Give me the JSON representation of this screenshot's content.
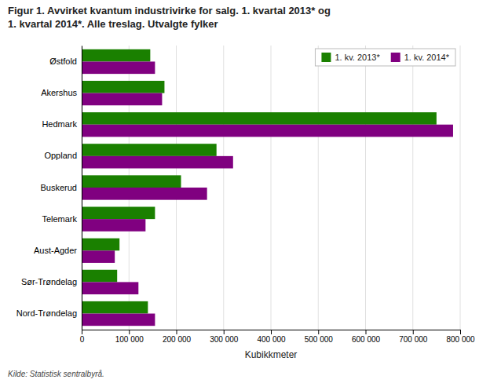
{
  "chart_data": {
    "type": "bar",
    "orientation": "horizontal",
    "title": "Figur 1. Avvirket kvantum industrivirke for salg. 1. kvartal 2013* og\n1. kvartal 2014*. Alle treslag. Utvalgte fylker",
    "categories": [
      "Østfold",
      "Akershus",
      "Hedmark",
      "Oppland",
      "Buskerud",
      "Telemark",
      "Aust-Agder",
      "Sør-Trøndelag",
      "Nord-Trøndelag"
    ],
    "series": [
      {
        "name": "1. kv. 2013*",
        "color": "#1a8000",
        "values": [
          145000,
          175000,
          750000,
          285000,
          210000,
          155000,
          80000,
          75000,
          140000
        ]
      },
      {
        "name": "1. kv. 2014*",
        "color": "#800080",
        "values": [
          155000,
          170000,
          785000,
          320000,
          265000,
          135000,
          70000,
          120000,
          155000
        ]
      }
    ],
    "xlabel": "Kubikkmeter",
    "xlim": [
      0,
      800000
    ],
    "xticks": [
      0,
      {
        "value": 100000,
        "label": "100 000"
      },
      {
        "value": 200000,
        "label": "200 000"
      },
      {
        "value": 300000,
        "label": "300 000"
      },
      {
        "value": 400000,
        "label": "400 000"
      },
      {
        "value": 500000,
        "label": "500 000"
      },
      {
        "value": 600000,
        "label": "600 000"
      },
      {
        "value": 700000,
        "label": "700 000"
      },
      {
        "value": 800000,
        "label": "800 000"
      }
    ],
    "grid": true,
    "legend": "upper right",
    "annotations": [
      "Kilde: Statistisk sentralbyrå."
    ]
  }
}
